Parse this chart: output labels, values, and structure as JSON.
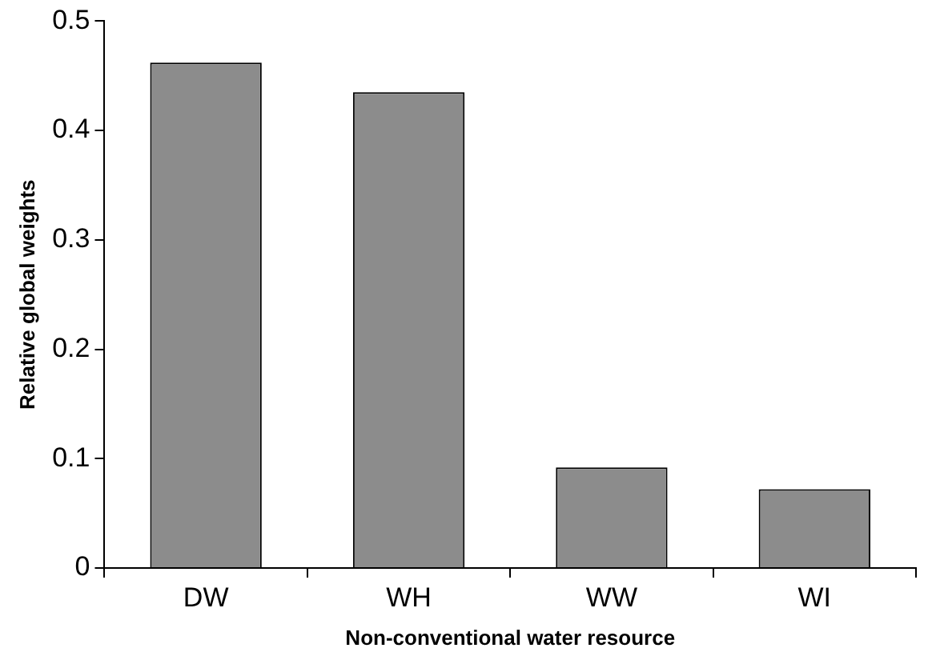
{
  "chart_data": {
    "type": "bar",
    "xlabel": "Non-conventional water resource",
    "ylabel": "Relative global weights",
    "categories": [
      "DW",
      "WH",
      "WW",
      "WI"
    ],
    "values": [
      0.462,
      0.435,
      0.092,
      0.072
    ],
    "color": "#8c8c8c",
    "ylim": [
      0,
      0.5
    ],
    "yticks": [
      0,
      0.1,
      0.2,
      0.3,
      0.4,
      0.5
    ],
    "grid": false,
    "legend": false
  }
}
